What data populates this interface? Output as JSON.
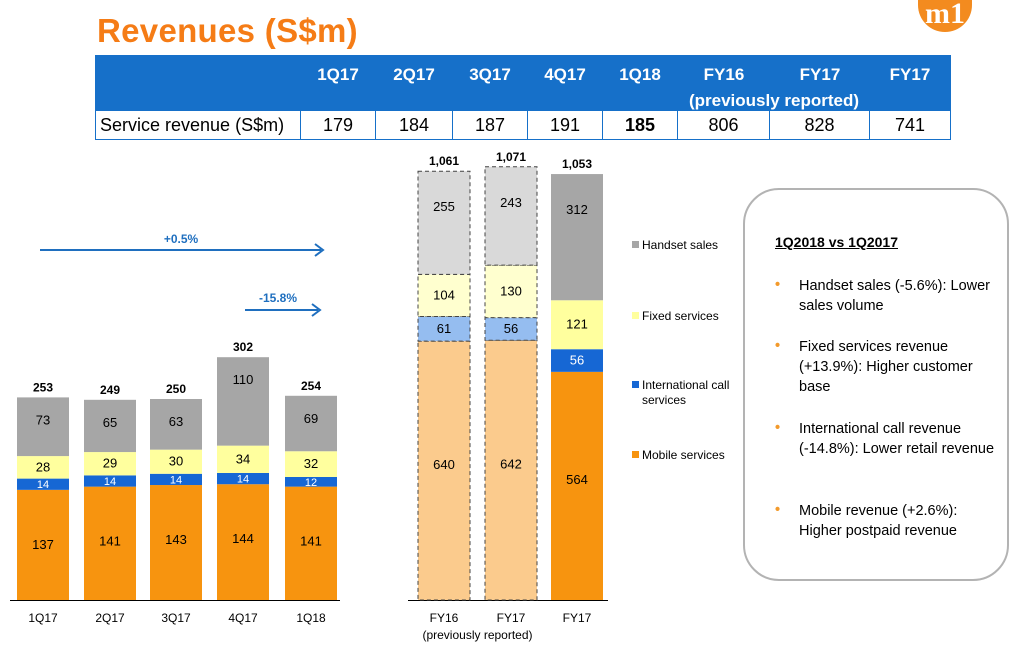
{
  "title": "Revenues (S$m)",
  "logo_text": "m1",
  "table": {
    "headers": [
      "1Q17",
      "2Q17",
      "3Q17",
      "4Q17",
      "1Q18",
      "FY16",
      "FY17",
      "FY17"
    ],
    "header_span_note": "(previously reported)",
    "row_label": "Service revenue (S$m)",
    "values": [
      "179",
      "184",
      "187",
      "191",
      "185",
      "806",
      "828",
      "741"
    ]
  },
  "chart_data": {
    "type": "bar",
    "stacked": true,
    "categories": [
      "1Q17",
      "2Q17",
      "3Q17",
      "4Q17",
      "1Q18",
      "FY16",
      "FY17",
      "FY17"
    ],
    "category_sublabel": "(previously reported)",
    "series": [
      {
        "name": "Mobile services",
        "values": [
          137,
          141,
          143,
          144,
          141,
          640,
          642,
          564
        ]
      },
      {
        "name": "International call services",
        "values": [
          14,
          14,
          14,
          14,
          12,
          61,
          56,
          56
        ]
      },
      {
        "name": "Fixed services",
        "values": [
          28,
          29,
          30,
          34,
          32,
          104,
          130,
          121
        ]
      },
      {
        "name": "Handset sales",
        "values": [
          73,
          65,
          63,
          110,
          69,
          255,
          243,
          312
        ]
      }
    ],
    "totals": [
      "253",
      "249",
      "250",
      "302",
      "254",
      "1,061",
      "1,071",
      "1,053"
    ],
    "previously_reported_flags": [
      false,
      false,
      false,
      false,
      false,
      true,
      true,
      false
    ],
    "arrows": [
      {
        "label": "+0.5%"
      },
      {
        "label": "-15.8%"
      }
    ],
    "legend_placement": "right",
    "colors": {
      "Mobile services": "#f7940f",
      "International call services": "#1667d4",
      "Fixed services": "#ffff9e",
      "Handset sales": "#a6a6a6"
    },
    "colors_previously_reported": {
      "Mobile services": "#fbcb8d",
      "International call services": "#95bdf0",
      "Fixed services": "#ffffcf",
      "Handset sales": "#d9d9d9"
    },
    "arrow_color": "#1f6fbf",
    "grid": false
  },
  "notes": {
    "title": "1Q2018 vs 1Q2017",
    "items": [
      "Handset sales (-5.6%): Lower sales volume",
      "Fixed services revenue (+13.9%): Higher customer base",
      "International call revenue (-14.8%): Lower retail revenue",
      "Mobile revenue (+2.6%): Higher postpaid revenue"
    ],
    "bullet": "•"
  }
}
